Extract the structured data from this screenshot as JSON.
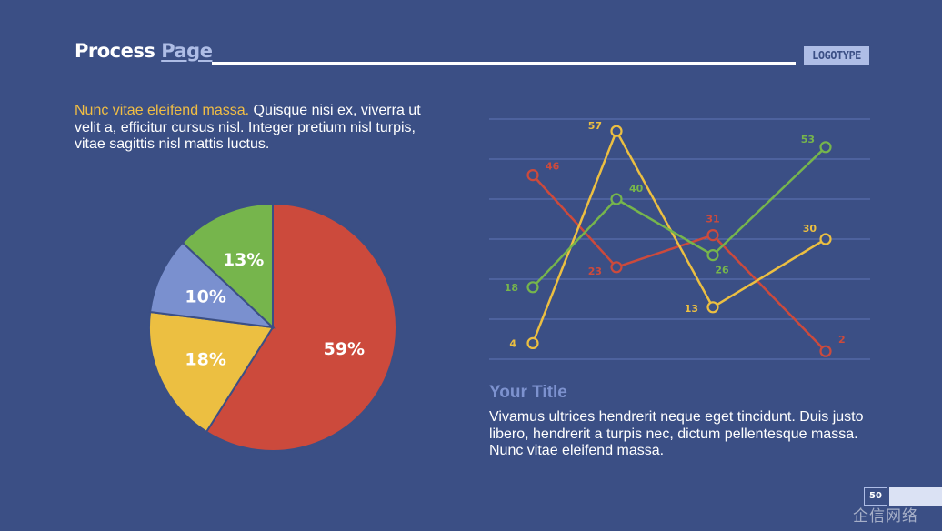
{
  "header": {
    "title_part1": "Process",
    "title_part2": "Page",
    "logotype": "LOGOTYPE"
  },
  "intro": {
    "highlight": "Nunc vitae eleifend massa.",
    "text": " Quisque nisi ex, viverra ut velit a, efficitur cursus nisl. Integer pretium nisl turpis, vitae sagittis nisl mattis luctus."
  },
  "right_section": {
    "title": "Your Title",
    "text": "Vivamus ultrices hendrerit neque eget tincidunt. Duis justo libero, hendrerit a turpis nec, dictum pellentesque massa. Nunc vitae eleifend massa."
  },
  "footer": {
    "page_number": "50",
    "watermark": "企信网络"
  },
  "colors": {
    "background": "#3b4f85",
    "red": "#cc4a3c",
    "yellow": "#ecbf41",
    "blue": "#7a90cf",
    "green": "#76b54c",
    "accent": "#aebde6"
  },
  "chart_data": [
    {
      "type": "pie",
      "slices": [
        {
          "label": "59%",
          "value": 59,
          "color": "#cc4a3c"
        },
        {
          "label": "18%",
          "value": 18,
          "color": "#ecbf41"
        },
        {
          "label": "10%",
          "value": 10,
          "color": "#7a90cf"
        },
        {
          "label": "13%",
          "value": 13,
          "color": "#76b54c"
        }
      ]
    },
    {
      "type": "line",
      "ylim": [
        0,
        60
      ],
      "grid": true,
      "x": [
        1,
        2,
        3,
        4
      ],
      "series": [
        {
          "values": [
            46,
            23,
            31,
            2
          ],
          "color": "#cc4a3c"
        },
        {
          "values": [
            4,
            57,
            13,
            30
          ],
          "color": "#ecbf41"
        },
        {
          "values": [
            18,
            40,
            26,
            53
          ],
          "color": "#76b54c"
        }
      ]
    }
  ]
}
